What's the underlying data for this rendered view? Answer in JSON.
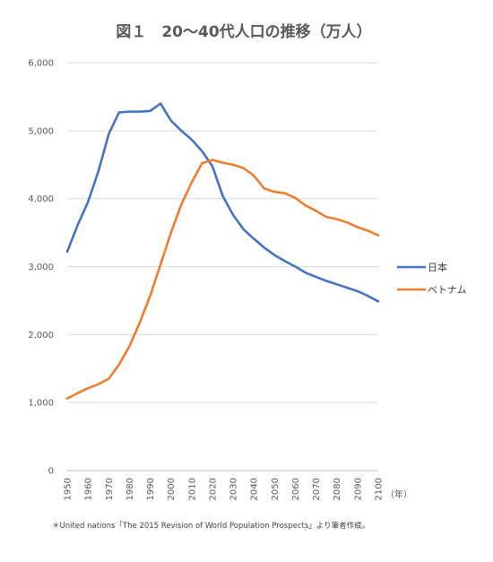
{
  "chart_data": {
    "type": "line",
    "title": "図１　20～40代人口の推移（万人）",
    "xlabel": "（年）",
    "ylabel": "",
    "x": [
      1950,
      1955,
      1960,
      1965,
      1970,
      1975,
      1980,
      1985,
      1990,
      1995,
      2000,
      2005,
      2010,
      2015,
      2020,
      2025,
      2030,
      2035,
      2040,
      2045,
      2050,
      2055,
      2060,
      2065,
      2070,
      2075,
      2080,
      2085,
      2090,
      2095,
      2100
    ],
    "x_tick_labels": [
      "1950",
      "1960",
      "1970",
      "1980",
      "1990",
      "2000",
      "2010",
      "2020",
      "2030",
      "2040",
      "2050",
      "2060",
      "2070",
      "2080",
      "2090",
      "2100"
    ],
    "x_ticks": [
      1950,
      1960,
      1970,
      1980,
      1990,
      2000,
      2010,
      2020,
      2030,
      2040,
      2050,
      2060,
      2070,
      2080,
      2090,
      2100
    ],
    "y_tick_labels": [
      "0",
      "1,000",
      "2,000",
      "3,000",
      "4,000",
      "5,000",
      "6,000"
    ],
    "y_ticks": [
      0,
      1000,
      2000,
      3000,
      4000,
      5000,
      6000
    ],
    "xlim": [
      1950,
      2100
    ],
    "ylim": [
      0,
      6000
    ],
    "grid": true,
    "legend_position": "right",
    "series": [
      {
        "name": "日本",
        "color": "#4472C4",
        "values": [
          3220,
          3610,
          3950,
          4400,
          4950,
          5270,
          5280,
          5280,
          5290,
          5400,
          5150,
          5000,
          4870,
          4700,
          4480,
          4040,
          3760,
          3550,
          3410,
          3280,
          3170,
          3080,
          3000,
          2910,
          2850,
          2790,
          2740,
          2690,
          2640,
          2570,
          2490
        ]
      },
      {
        "name": "ベトナム",
        "color": "#ED7D31",
        "values": [
          1060,
          1140,
          1210,
          1270,
          1350,
          1560,
          1830,
          2180,
          2570,
          3030,
          3500,
          3910,
          4240,
          4520,
          4570,
          4530,
          4500,
          4450,
          4340,
          4150,
          4100,
          4080,
          4010,
          3900,
          3820,
          3730,
          3700,
          3650,
          3580,
          3530,
          3460
        ]
      }
    ]
  },
  "footnote": "＊United nations「The 2015 Revision of World Population Prospects」より筆者作成。"
}
